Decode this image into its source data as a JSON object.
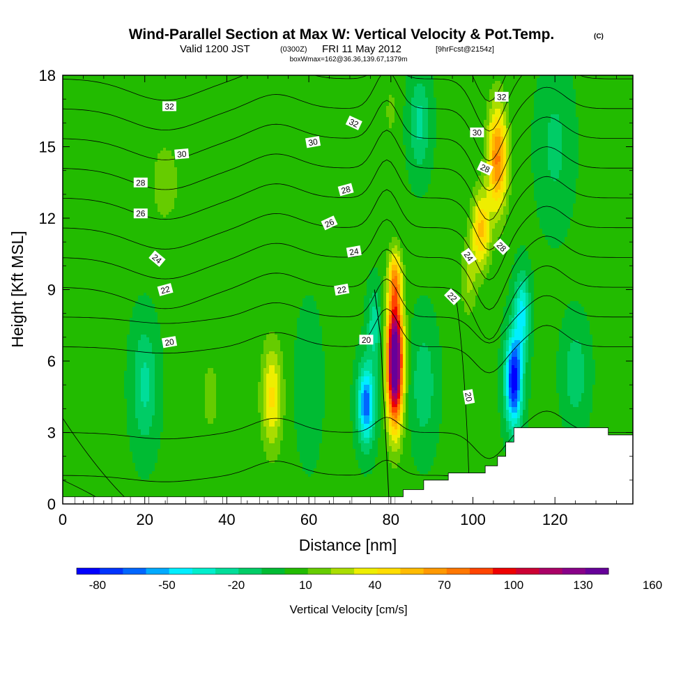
{
  "chart_data": {
    "type": "heatmap",
    "title": "Wind-Parallel Section at Max W: Vertical Velocity & Pot.Temp.",
    "title_mark": "(C)",
    "subtitle": {
      "valid": "Valid 1200 JST",
      "utc": "(0300Z)",
      "date": "FRI 11 May 2012",
      "fcst": "[9hrFcst@2154z]"
    },
    "info_line": "boxWmax=162@36.36,139.67,1379m",
    "xlabel": "Distance [nm]",
    "ylabel": "Height [Kft MSL]",
    "xlim": [
      0,
      139
    ],
    "ylim": [
      0,
      18
    ],
    "x_ticks": [
      0,
      20,
      40,
      60,
      80,
      100,
      120
    ],
    "y_ticks": [
      0,
      3,
      6,
      9,
      12,
      15,
      18
    ],
    "colorbar": {
      "label": "Vertical Velocity [cm/s]",
      "min": -80,
      "step": 10,
      "tick_labels": [
        "-80",
        "-50",
        "-20",
        "10",
        "40",
        "70",
        "100",
        "130",
        "160"
      ],
      "colors": [
        "#0000ff",
        "#0033ff",
        "#0066ff",
        "#00aaff",
        "#00eeff",
        "#00eecc",
        "#00dd99",
        "#00cc66",
        "#00bb33",
        "#22bb00",
        "#66cc00",
        "#aadd00",
        "#eeee00",
        "#ffdd00",
        "#ffbb00",
        "#ff9900",
        "#ff7700",
        "#ff4400",
        "#ee0000",
        "#cc0033",
        "#aa0066",
        "#880088",
        "#660099"
      ]
    },
    "velocity_features": [
      {
        "x": 81,
        "z": 6.0,
        "sx": 1.9,
        "sz": 2.6,
        "w": 160
      },
      {
        "x": 81,
        "z": 9.5,
        "sx": 1.6,
        "sz": 1.2,
        "w": 45
      },
      {
        "x": 74,
        "z": 4.2,
        "sx": 2.0,
        "sz": 1.6,
        "w": -70
      },
      {
        "x": 76,
        "z": 7.5,
        "sx": 1.6,
        "sz": 1.5,
        "w": -30
      },
      {
        "x": 110,
        "z": 5.2,
        "sx": 2.0,
        "sz": 1.9,
        "w": -90
      },
      {
        "x": 112,
        "z": 8.0,
        "sx": 1.8,
        "sz": 1.6,
        "w": -45
      },
      {
        "x": 106,
        "z": 14.5,
        "sx": 2.4,
        "sz": 2.2,
        "w": 70
      },
      {
        "x": 102,
        "z": 11.5,
        "sx": 2.2,
        "sz": 1.6,
        "w": 50
      },
      {
        "x": 99,
        "z": 9.5,
        "sx": 2.0,
        "sz": 1.6,
        "w": 20
      },
      {
        "x": 20,
        "z": 5.0,
        "sx": 3.0,
        "sz": 2.5,
        "w": -25
      },
      {
        "x": 51,
        "z": 4.5,
        "sx": 2.5,
        "sz": 2.2,
        "w": 40
      },
      {
        "x": 36,
        "z": 4.5,
        "sx": 3.5,
        "sz": 2.5,
        "w": 10
      },
      {
        "x": 60,
        "z": 5.0,
        "sx": 3.0,
        "sz": 3.0,
        "w": -10
      },
      {
        "x": 88,
        "z": 5.0,
        "sx": 3.0,
        "sz": 2.5,
        "w": -20
      },
      {
        "x": 125,
        "z": 5.5,
        "sx": 3.0,
        "sz": 2.0,
        "w": -20
      },
      {
        "x": 87,
        "z": 16.0,
        "sx": 2.5,
        "sz": 2.0,
        "w": -25
      },
      {
        "x": 80,
        "z": 16.5,
        "sx": 1.8,
        "sz": 1.5,
        "w": 10
      },
      {
        "x": 120,
        "z": 15.0,
        "sx": 4.0,
        "sz": 3.0,
        "w": -15
      },
      {
        "x": 25,
        "z": 13.5,
        "sx": 6.0,
        "sz": 3.0,
        "w": 10
      },
      {
        "x": 5,
        "z": 2.0,
        "sx": 4.0,
        "sz": 2.0,
        "w": 5
      }
    ],
    "theta_contours": {
      "labeled_levels": [
        20,
        22,
        24,
        26,
        28,
        30,
        32
      ],
      "labels": [
        {
          "text": "32",
          "x": 26,
          "z": 16.7,
          "angle": 0
        },
        {
          "text": "32",
          "x": 71,
          "z": 16.0,
          "angle": 25
        },
        {
          "text": "32",
          "x": 107,
          "z": 17.1,
          "angle": 0
        },
        {
          "text": "30",
          "x": 29,
          "z": 14.7,
          "angle": -5
        },
        {
          "text": "30",
          "x": 61,
          "z": 15.2,
          "angle": -10
        },
        {
          "text": "30",
          "x": 101,
          "z": 15.6,
          "angle": 0
        },
        {
          "text": "28",
          "x": 19,
          "z": 13.5,
          "angle": 0
        },
        {
          "text": "28",
          "x": 69,
          "z": 13.2,
          "angle": -15
        },
        {
          "text": "28",
          "x": 103,
          "z": 14.1,
          "angle": 25
        },
        {
          "text": "28",
          "x": 107,
          "z": 10.8,
          "angle": 45
        },
        {
          "text": "26",
          "x": 19,
          "z": 12.2,
          "angle": 0
        },
        {
          "text": "26",
          "x": 65,
          "z": 11.8,
          "angle": -25
        },
        {
          "text": "24",
          "x": 23,
          "z": 10.3,
          "angle": 40
        },
        {
          "text": "24",
          "x": 71,
          "z": 10.6,
          "angle": -10
        },
        {
          "text": "24",
          "x": 99,
          "z": 10.4,
          "angle": 55
        },
        {
          "text": "22",
          "x": 25,
          "z": 9.0,
          "angle": -15
        },
        {
          "text": "22",
          "x": 68,
          "z": 9.0,
          "angle": -10
        },
        {
          "text": "22",
          "x": 95,
          "z": 8.7,
          "angle": 45
        },
        {
          "text": "20",
          "x": 26,
          "z": 6.8,
          "angle": -10
        },
        {
          "text": "20",
          "x": 74,
          "z": 6.9,
          "angle": 0
        },
        {
          "text": "20",
          "x": 99,
          "z": 4.5,
          "angle": 80
        }
      ]
    },
    "terrain_steps": [
      [
        81,
        0.3
      ],
      [
        83,
        0.6
      ],
      [
        88,
        1.0
      ],
      [
        94,
        1.3
      ],
      [
        103,
        1.6
      ],
      [
        106,
        2.0
      ],
      [
        108,
        2.6
      ],
      [
        110,
        3.2
      ],
      [
        133,
        2.9
      ],
      [
        139,
        2.9
      ]
    ]
  }
}
